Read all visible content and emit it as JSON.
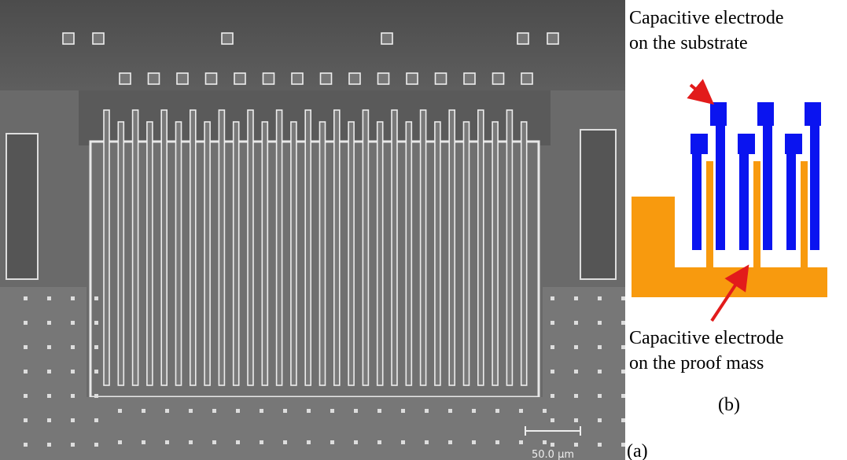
{
  "panel_a": {
    "label": "(a)",
    "scale_bar": "50.0 µm"
  },
  "panel_b": {
    "label": "(b)",
    "top_annotation": [
      "Capacitive electrode",
      "on the substrate"
    ],
    "bottom_annotation": [
      "Capacitive electrode",
      "on the proof mass"
    ]
  }
}
